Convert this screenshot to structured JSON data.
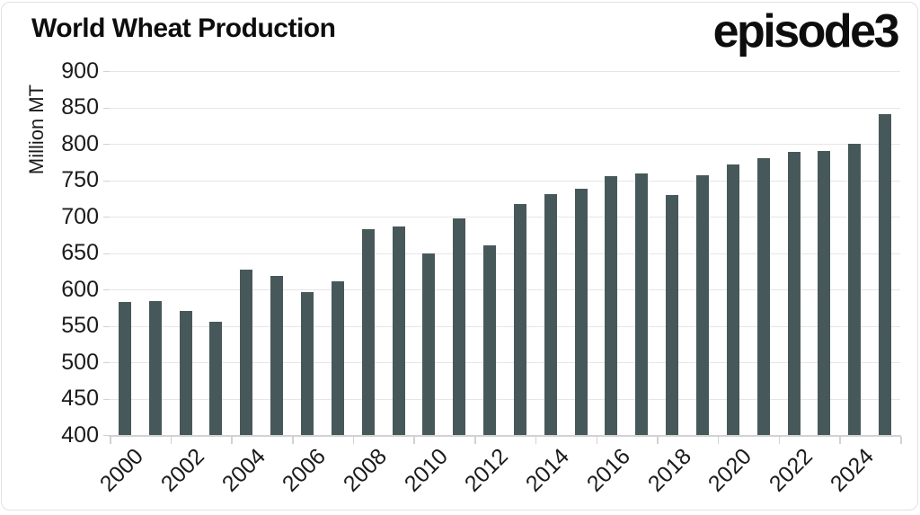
{
  "header": {
    "title": "World Wheat Production",
    "logo_text": "episode3"
  },
  "chart_data": {
    "type": "bar",
    "title": "World Wheat Production",
    "ylabel": "Million MT",
    "xlabel": "",
    "ylim": [
      400,
      900
    ],
    "ytick_step": 50,
    "grid": "horizontal",
    "legend": "none",
    "categories": [
      2000,
      2001,
      2002,
      2003,
      2004,
      2005,
      2006,
      2007,
      2008,
      2009,
      2010,
      2011,
      2012,
      2013,
      2014,
      2015,
      2016,
      2017,
      2018,
      2019,
      2020,
      2021,
      2022,
      2023,
      2024,
      2025
    ],
    "values": [
      583,
      584,
      570,
      555,
      627,
      619,
      596,
      611,
      683,
      687,
      649,
      698,
      660,
      717,
      731,
      738,
      756,
      759,
      730,
      757,
      772,
      780,
      789,
      790,
      800,
      841
    ],
    "ytick_labels": [
      "900",
      "850",
      "800",
      "750",
      "700",
      "650",
      "600",
      "550",
      "500",
      "450",
      "400"
    ],
    "xtick_labels": [
      "2000",
      "2002",
      "2004",
      "2006",
      "2008",
      "2010",
      "2012",
      "2014",
      "2016",
      "2018",
      "2020",
      "2022",
      "2024"
    ],
    "colors": {
      "bar": "#47585a",
      "grid": "#e6e6e6",
      "axis": "#d2d2d2",
      "tick_text": "#1b1b1b",
      "title_text": "#0d0d0d"
    }
  }
}
